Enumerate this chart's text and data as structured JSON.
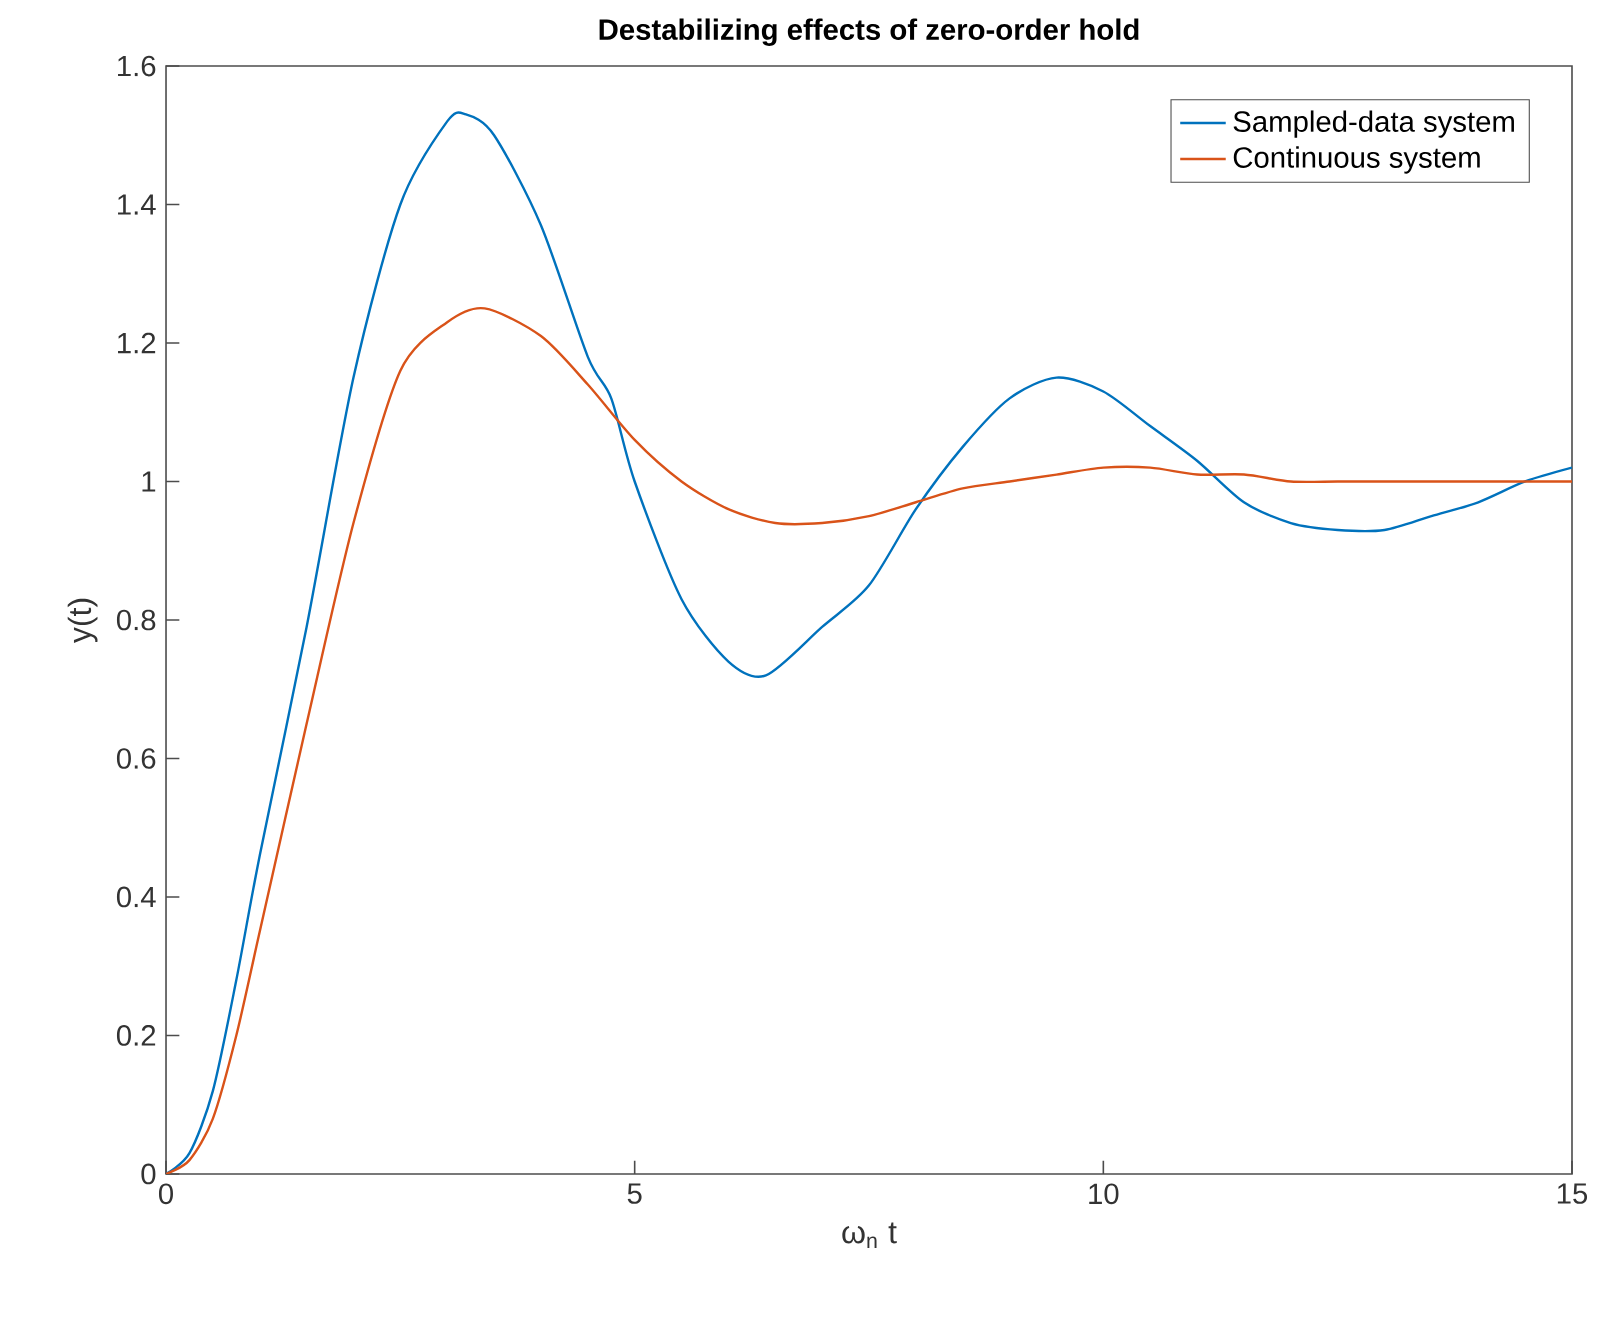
{
  "chart_data": {
    "type": "line",
    "title": "Destabilizing effects of zero-order hold",
    "xlabel": "ω$_{n}$ t",
    "ylabel": "y(t)",
    "xlim": [
      0,
      15
    ],
    "xticks": [
      0,
      5,
      10,
      15
    ],
    "ylim": [
      0,
      1.6
    ],
    "yticks": [
      0,
      0.2,
      0.4,
      0.6,
      0.8,
      1,
      1.2,
      1.4,
      1.6
    ],
    "legend": "top right",
    "series": [
      {
        "name": "Sampled-data system",
        "color": "#0072bd",
        "x": [
          0,
          0.25,
          0.5,
          0.75,
          1,
          1.5,
          2,
          2.5,
          3,
          3.2,
          3.5,
          4,
          4.5,
          4.75,
          5,
          5.5,
          6,
          6.4,
          7,
          7.5,
          8,
          8.5,
          9,
          9.5,
          10,
          10.5,
          11,
          11.5,
          12,
          12.5,
          13,
          13.5,
          14,
          14.5,
          15
        ],
        "values": [
          0,
          0.03,
          0.12,
          0.28,
          0.46,
          0.79,
          1.15,
          1.4,
          1.52,
          1.53,
          1.5,
          1.37,
          1.18,
          1.12,
          1.0,
          0.83,
          0.74,
          0.72,
          0.79,
          0.85,
          0.96,
          1.05,
          1.12,
          1.15,
          1.13,
          1.08,
          1.03,
          0.97,
          0.94,
          0.93,
          0.93,
          0.95,
          0.97,
          1.0,
          1.02
        ]
      },
      {
        "name": "Continuous system",
        "color": "#d95319",
        "x": [
          0,
          0.25,
          0.5,
          0.75,
          1,
          1.5,
          2,
          2.5,
          3,
          3.4,
          4,
          4.5,
          5,
          5.5,
          6,
          6.5,
          7,
          7.5,
          8,
          8.5,
          9,
          9.5,
          10,
          10.5,
          11,
          11.5,
          12,
          12.5,
          13,
          13.5,
          14,
          14.5,
          15
        ],
        "values": [
          0,
          0.02,
          0.08,
          0.2,
          0.35,
          0.65,
          0.94,
          1.16,
          1.23,
          1.25,
          1.21,
          1.14,
          1.06,
          1.0,
          0.96,
          0.94,
          0.94,
          0.95,
          0.97,
          0.99,
          1.0,
          1.01,
          1.02,
          1.02,
          1.01,
          1.01,
          1.0,
          1.0,
          1.0,
          1.0,
          1.0,
          1.0,
          1.0
        ]
      }
    ]
  }
}
